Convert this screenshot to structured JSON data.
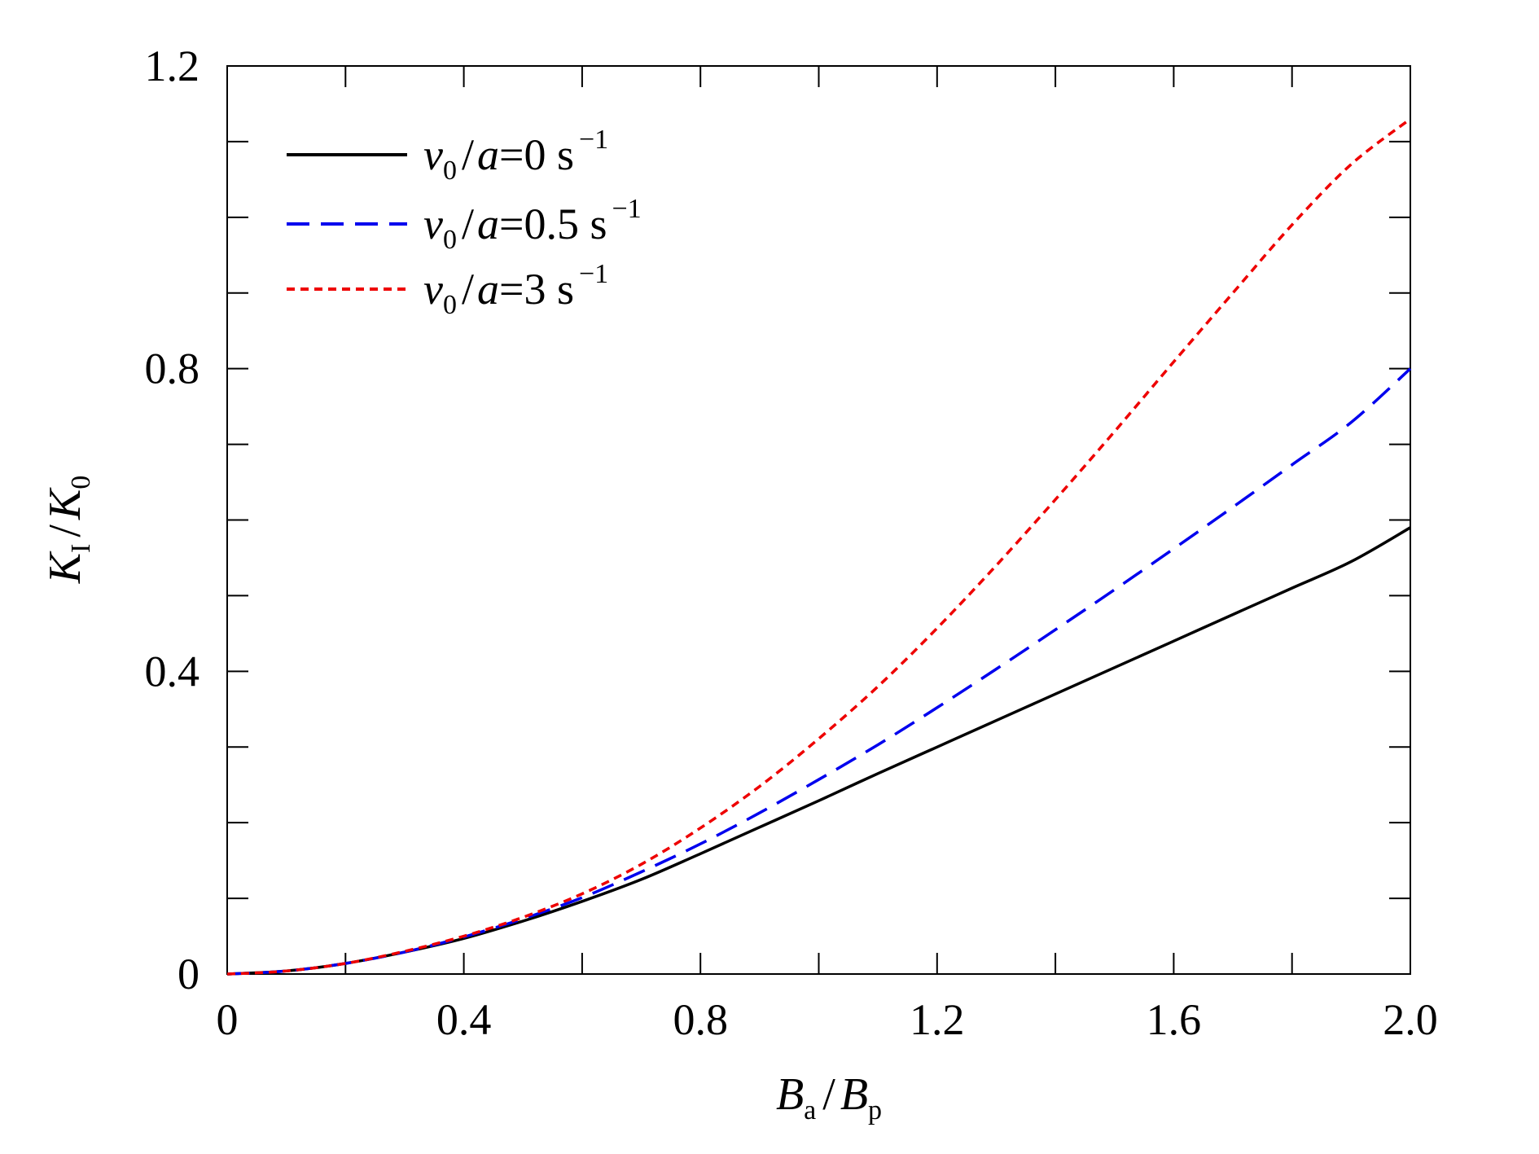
{
  "chart_data": {
    "type": "line",
    "xlabel": {
      "main": "B",
      "sub": "a",
      "sep": "/",
      "main2": "B",
      "sub2": "p"
    },
    "ylabel": {
      "main": "K",
      "sub": "I",
      "sep": "/",
      "main2": "K",
      "sub2": "0"
    },
    "xlim": [
      0,
      2.0
    ],
    "ylim": [
      0,
      1.2
    ],
    "xticks": [
      0,
      0.4,
      0.8,
      1.2,
      1.6,
      2.0
    ],
    "xtick_labels": [
      "0",
      "0.4",
      "0.8",
      "1.2",
      "1.6",
      "2.0"
    ],
    "yticks": [
      0,
      0.4,
      0.8,
      1.2
    ],
    "ytick_labels": [
      "0",
      "0.4",
      "0.8",
      "1.2"
    ],
    "x_minor_step": 0.2,
    "y_minor_step": 0.1,
    "grid": false,
    "legend_position": "top-left",
    "series": [
      {
        "name": "v0/a=0 s^-1",
        "legend": {
          "v": "v",
          "sub": "0",
          "rest": "/",
          "a": "a",
          "eq": "=0 s",
          "sup": "−1"
        },
        "color": "#000000",
        "style": "solid",
        "x": [
          0,
          0.1,
          0.2,
          0.3,
          0.4,
          0.5,
          0.6,
          0.7,
          0.8,
          0.9,
          1.0,
          1.1,
          1.2,
          1.3,
          1.4,
          1.5,
          1.6,
          1.7,
          1.8,
          1.9,
          2.0
        ],
        "y": [
          0,
          0.004,
          0.014,
          0.029,
          0.047,
          0.07,
          0.096,
          0.125,
          0.159,
          0.194,
          0.229,
          0.265,
          0.3,
          0.335,
          0.37,
          0.405,
          0.44,
          0.475,
          0.51,
          0.545,
          0.59
        ]
      },
      {
        "name": "v0/a=0.5 s^-1",
        "legend": {
          "v": "v",
          "sub": "0",
          "rest": "/",
          "a": "a",
          "eq": "=0.5 s",
          "sup": "−1"
        },
        "color": "#0000ee",
        "style": "dashed",
        "x": [
          0,
          0.1,
          0.2,
          0.3,
          0.4,
          0.5,
          0.6,
          0.7,
          0.8,
          0.9,
          1.0,
          1.1,
          1.2,
          1.3,
          1.4,
          1.5,
          1.6,
          1.7,
          1.8,
          1.9,
          2.0
        ],
        "y": [
          0,
          0.004,
          0.014,
          0.029,
          0.049,
          0.073,
          0.101,
          0.135,
          0.172,
          0.213,
          0.257,
          0.303,
          0.352,
          0.403,
          0.455,
          0.508,
          0.562,
          0.617,
          0.673,
          0.729,
          0.8
        ]
      },
      {
        "name": "v0/a=3 s^-1",
        "legend": {
          "v": "v",
          "sub": "0",
          "rest": "/",
          "a": "a",
          "eq": "=3 s",
          "sup": "−1"
        },
        "color": "#ee0000",
        "style": "dotted",
        "x": [
          0,
          0.1,
          0.2,
          0.3,
          0.4,
          0.5,
          0.6,
          0.7,
          0.8,
          0.9,
          1.0,
          1.1,
          1.2,
          1.3,
          1.4,
          1.5,
          1.6,
          1.7,
          1.8,
          1.9,
          2.0
        ],
        "y": [
          0,
          0.004,
          0.014,
          0.03,
          0.05,
          0.075,
          0.106,
          0.145,
          0.193,
          0.248,
          0.311,
          0.38,
          0.457,
          0.54,
          0.627,
          0.717,
          0.809,
          0.9,
          0.99,
          1.07,
          1.13
        ]
      }
    ]
  }
}
